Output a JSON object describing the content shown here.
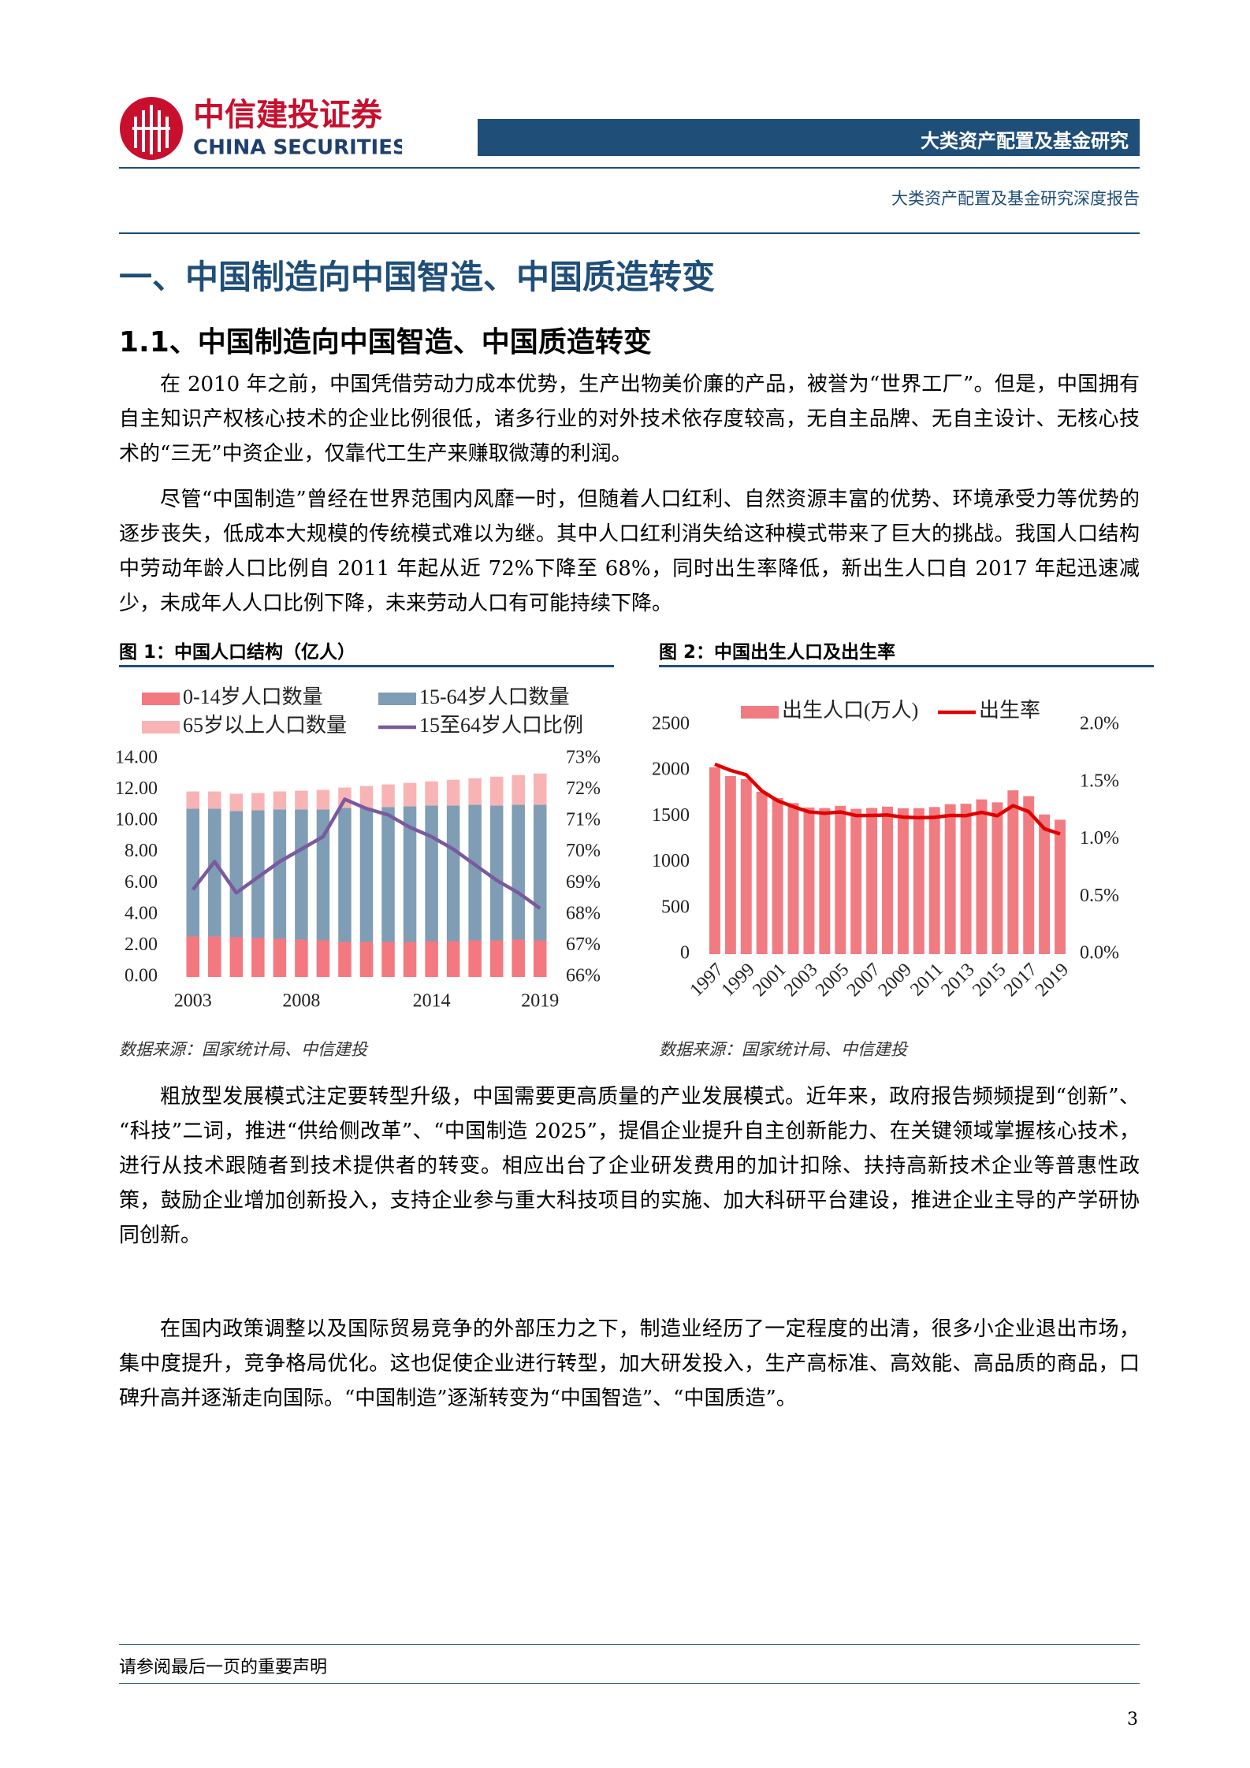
{
  "header": {
    "logo_cn": "中信建投证券",
    "logo_en": "CHINA SECURITIES",
    "banner": "大类资产配置及基金研究",
    "subtitle": "大类资产配置及基金研究深度报告"
  },
  "heading1": "一、中国制造向中国智造、中国质造转变",
  "heading2": "1.1、中国制造向中国智造、中国质造转变",
  "paragraphs": [
    "在 2010 年之前，中国凭借劳动力成本优势，生产出物美价廉的产品，被誉为“世界工厂”。但是，中国拥有自主知识产权核心技术的企业比例很低，诸多行业的对外技术依存度较高，无自主品牌、无自主设计、无核心技术的“三无”中资企业，仅靠代工生产来赚取微薄的利润。",
    "尽管“中国制造”曾经在世界范围内风靡一时，但随着人口红利、自然资源丰富的优势、环境承受力等优势的逐步丧失，低成本大规模的传统模式难以为继。其中人口红利消失给这种模式带来了巨大的挑战。我国人口结构中劳动年龄人口比例自 2011 年起从近 72%下降至 68%，同时出生率降低，新出生人口自 2017 年起迅速减少，未成年人人口比例下降，未来劳动人口有可能持续下降。",
    "粗放型发展模式注定要转型升级，中国需要更高质量的产业发展模式。近年来，政府报告频频提到“创新”、“科技”二词，推进“供给侧改革”、“中国制造 2025”，提倡企业提升自主创新能力、在关键领域掌握核心技术，进行从技术跟随者到技术提供者的转变。相应出台了企业研发费用的加计扣除、扶持高新技术企业等普惠性政策，鼓励企业增加创新投入，支持企业参与重大科技项目的实施、加大科研平台建设，推进企业主导的产学研协同创新。",
    "在国内政策调整以及国际贸易竞争的外部压力之下，制造业经历了一定程度的出清，很多小企业退出市场，集中度提升，竞争格局优化。这也促使企业进行转型，加大研发投入，生产高标准、高效能、高品质的商品，口碑升高并逐渐走向国际。“中国制造”逐渐转变为“中国智造”、“中国质造”。"
  ],
  "chart_data": [
    {
      "type": "bar",
      "stacked": true,
      "caption": "图 1：中国人口结构（亿人）",
      "source": "数据来源：国家统计局、中信建投",
      "categories": [
        "2003",
        null,
        null,
        null,
        null,
        "2008",
        null,
        null,
        null,
        null,
        null,
        "2014",
        null,
        null,
        null,
        null,
        "2019"
      ],
      "series": [
        {
          "name": "0-14岁人口数量",
          "color": "#f4787f",
          "values": [
            2.6,
            2.6,
            2.55,
            2.5,
            2.45,
            2.4,
            2.35,
            2.25,
            2.25,
            2.25,
            2.25,
            2.3,
            2.3,
            2.35,
            2.35,
            2.4,
            2.35
          ]
        },
        {
          "name": "15-64岁人口数量",
          "color": "#7f9db5",
          "values": [
            8.2,
            8.2,
            8.1,
            8.2,
            8.3,
            8.35,
            8.4,
            8.6,
            8.6,
            8.65,
            8.7,
            8.7,
            8.7,
            8.7,
            8.65,
            8.65,
            8.7
          ]
        },
        {
          "name": "65岁以上人口数量",
          "color": "#f8b4b4",
          "values": [
            1.1,
            1.1,
            1.1,
            1.1,
            1.15,
            1.2,
            1.25,
            1.3,
            1.4,
            1.45,
            1.5,
            1.55,
            1.65,
            1.7,
            1.85,
            1.9,
            2.0
          ]
        },
        {
          "name": "15至64岁人口比例",
          "color": "#7a5a9e",
          "type": "line",
          "axis": "y2",
          "values": [
            68.8,
            69.7,
            68.7,
            69.2,
            69.7,
            70.1,
            70.5,
            71.7,
            71.4,
            71.2,
            70.8,
            70.5,
            70.1,
            69.6,
            69.1,
            68.7,
            68.2
          ]
        }
      ],
      "ylim": [
        0,
        14
      ],
      "yticks": [
        {
          "value": 0,
          "label": "0.00"
        },
        {
          "value": 2,
          "label": "2.00"
        },
        {
          "value": 4,
          "label": "4.00"
        },
        {
          "value": 6,
          "label": "6.00"
        },
        {
          "value": 8,
          "label": "8.00"
        },
        {
          "value": 10,
          "label": "10.00"
        },
        {
          "value": 12,
          "label": "12.00"
        },
        {
          "value": 14,
          "label": "14.00"
        }
      ],
      "y2lim": [
        66,
        73
      ],
      "y2ticks": [
        {
          "value": 66,
          "label": "66%"
        },
        {
          "value": 67,
          "label": "67%"
        },
        {
          "value": 68,
          "label": "68%"
        },
        {
          "value": 69,
          "label": "69%"
        },
        {
          "value": 70,
          "label": "70%"
        },
        {
          "value": 71,
          "label": "71%"
        },
        {
          "value": 72,
          "label": "72%"
        },
        {
          "value": 73,
          "label": "73%"
        }
      ]
    },
    {
      "type": "bar",
      "caption": "图 2：中国出生人口及出生率",
      "source": "数据来源：国家统计局、中信建投",
      "categories": [
        "1997",
        null,
        "1999",
        null,
        "2001",
        null,
        "2003",
        null,
        "2005",
        null,
        "2007",
        null,
        "2009",
        null,
        "2011",
        null,
        "2013",
        null,
        "2015",
        null,
        "2017",
        null,
        "2019"
      ],
      "series": [
        {
          "name": "出生人口(万人)",
          "color": "#f07c82",
          "values": [
            2038,
            1942,
            1909,
            1771,
            1702,
            1647,
            1599,
            1593,
            1617,
            1584,
            1594,
            1608,
            1591,
            1592,
            1604,
            1635,
            1640,
            1687,
            1655,
            1786,
            1723,
            1523,
            1465
          ]
        },
        {
          "name": "出生率",
          "color": "#e00000",
          "type": "line",
          "axis": "y2",
          "values": [
            1.657,
            1.603,
            1.564,
            1.423,
            1.338,
            1.286,
            1.241,
            1.229,
            1.24,
            1.209,
            1.21,
            1.214,
            1.195,
            1.19,
            1.193,
            1.21,
            1.208,
            1.237,
            1.207,
            1.295,
            1.243,
            1.094,
            1.048
          ]
        }
      ],
      "ylim": [
        0,
        2500
      ],
      "yticks": [
        0,
        500,
        1000,
        1500,
        2000,
        2500
      ],
      "y2lim": [
        0,
        2
      ],
      "y2ticks": [
        {
          "value": 0,
          "label": "0.0%"
        },
        {
          "value": 0.5,
          "label": "0.5%"
        },
        {
          "value": 1,
          "label": "1.0%"
        },
        {
          "value": 1.5,
          "label": "1.5%"
        },
        {
          "value": 2,
          "label": "2.0%"
        }
      ]
    }
  ],
  "footer": {
    "notice": "请参阅最后一页的重要声明",
    "page": 3
  }
}
